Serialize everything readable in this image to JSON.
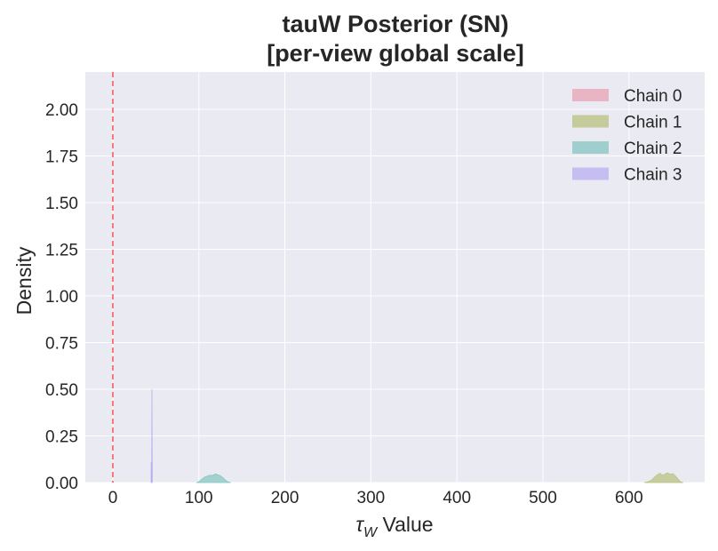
{
  "chart_data": {
    "type": "area",
    "title_line1": "tauW Posterior (SN)",
    "title_line2": "[per-view global scale]",
    "xlabel_symbol": "τ",
    "xlabel_subscript": "W",
    "xlabel_text": " Value",
    "ylabel": "Density",
    "xlim": [
      -32,
      688
    ],
    "ylim": [
      0,
      2.2
    ],
    "xticks": [
      0,
      100,
      200,
      300,
      400,
      500,
      600
    ],
    "yticks": [
      0,
      0.25,
      0.5,
      0.75,
      1.0,
      1.25,
      1.5,
      1.75,
      2.0
    ],
    "ytick_labels": [
      "0.00",
      "0.25",
      "0.50",
      "0.75",
      "1.00",
      "1.25",
      "1.50",
      "1.75",
      "2.00"
    ],
    "grid": true,
    "legend_position": "top-right",
    "reference_line": {
      "x": 0,
      "color": "#ff6b6b",
      "style": "dashed"
    },
    "series": [
      {
        "name": "Chain 0",
        "color": "#e8a3b4",
        "points": []
      },
      {
        "name": "Chain 1",
        "color": "#b9c07f",
        "points": [
          [
            618,
            0
          ],
          [
            622,
            0.004
          ],
          [
            626,
            0.012
          ],
          [
            630,
            0.03
          ],
          [
            633,
            0.042
          ],
          [
            636,
            0.05
          ],
          [
            639,
            0.038
          ],
          [
            642,
            0.046
          ],
          [
            645,
            0.052
          ],
          [
            648,
            0.044
          ],
          [
            651,
            0.048
          ],
          [
            654,
            0.035
          ],
          [
            657,
            0.018
          ],
          [
            660,
            0.004
          ],
          [
            663,
            0
          ]
        ]
      },
      {
        "name": "Chain 2",
        "color": "#84c6c2",
        "points": [
          [
            98,
            0
          ],
          [
            101,
            0.008
          ],
          [
            104,
            0.02
          ],
          [
            107,
            0.03
          ],
          [
            110,
            0.035
          ],
          [
            113,
            0.04
          ],
          [
            116,
            0.038
          ],
          [
            119,
            0.046
          ],
          [
            122,
            0.042
          ],
          [
            125,
            0.036
          ],
          [
            128,
            0.026
          ],
          [
            131,
            0.012
          ],
          [
            134,
            0.004
          ],
          [
            137,
            0
          ]
        ]
      },
      {
        "name": "Chain 3",
        "color": "#b9aef0",
        "points": [
          [
            44.4,
            0
          ],
          [
            44.6,
            0.11
          ],
          [
            44.8,
            0.02
          ],
          [
            45.2,
            0
          ],
          [
            45.5,
            0.5
          ],
          [
            45.9,
            0
          ]
        ]
      }
    ]
  }
}
